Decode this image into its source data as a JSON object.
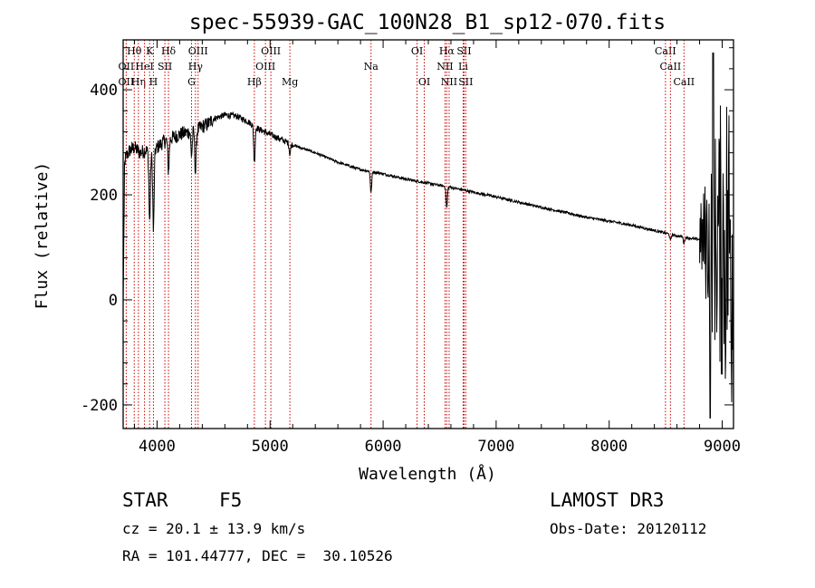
{
  "chart_data": {
    "type": "line",
    "title": "spec-55939-GAC_100N28_B1_sp12-070.fits",
    "xlabel": "Wavelength (Å)",
    "ylabel": "Flux (relative)",
    "xlim": [
      3700,
      9100
    ],
    "ylim": [
      -245,
      495
    ],
    "xticks": [
      4000,
      5000,
      6000,
      7000,
      8000,
      9000
    ],
    "yticks": [
      -200,
      0,
      200,
      400
    ],
    "continuum": {
      "x": [
        3700,
        3720,
        3760,
        3800,
        3850,
        3900,
        3950,
        4000,
        4050,
        4100,
        4150,
        4200,
        4250,
        4300,
        4350,
        4400,
        4450,
        4500,
        4600,
        4700,
        4800,
        4900,
        5000,
        5100,
        5200,
        5400,
        5600,
        5800,
        6000,
        6200,
        6400,
        6600,
        6800,
        7000,
        7200,
        7400,
        7600,
        7800,
        8000,
        8200,
        8400,
        8600,
        8700,
        8750,
        8800
      ],
      "y": [
        230,
        270,
        285,
        290,
        280,
        285,
        275,
        290,
        300,
        305,
        310,
        315,
        318,
        320,
        322,
        330,
        335,
        345,
        352,
        350,
        340,
        325,
        315,
        305,
        295,
        280,
        262,
        248,
        240,
        230,
        222,
        214,
        205,
        196,
        186,
        176,
        167,
        157,
        150,
        142,
        132,
        122,
        118,
        116,
        115
      ]
    },
    "absorption_lines": [
      {
        "name": "H",
        "x": 3968,
        "depth": 150
      },
      {
        "name": "K",
        "x": 3934,
        "depth": 130
      },
      {
        "name": "Hδ",
        "x": 4101,
        "depth": 60
      },
      {
        "name": "G",
        "x": 4305,
        "depth": 45
      },
      {
        "name": "Hγ",
        "x": 4340,
        "depth": 80
      },
      {
        "name": "Hβ",
        "x": 4861,
        "depth": 70
      },
      {
        "name": "Mg",
        "x": 5175,
        "depth": 20
      },
      {
        "name": "Na",
        "x": 5893,
        "depth": 40
      },
      {
        "name": "Hα",
        "x": 6563,
        "depth": 40
      },
      {
        "name": "CaII",
        "x": 8542,
        "depth": 12
      },
      {
        "name": "CaII",
        "x": 8662,
        "depth": 12
      }
    ],
    "red_end_noise": {
      "x_start": 8800,
      "x_end": 9100,
      "ymin": -225,
      "ymax": 470
    }
  },
  "line_markers": [
    {
      "label": "Hθ",
      "x": 3798,
      "row": 1
    },
    {
      "label": "OII",
      "x": 3727,
      "row": 2
    },
    {
      "label": "OII",
      "x": 3727,
      "row": 3
    },
    {
      "label": "Hη",
      "x": 3835,
      "row": 3
    },
    {
      "label": "K",
      "x": 3934,
      "row": 1
    },
    {
      "label": "HeI",
      "x": 3889,
      "row": 2
    },
    {
      "label": "H",
      "x": 3968,
      "row": 3
    },
    {
      "label": "Hδ",
      "x": 4101,
      "row": 1
    },
    {
      "label": "SII",
      "x": 4069,
      "row": 2
    },
    {
      "label": "OIII",
      "x": 4363,
      "row": 1
    },
    {
      "label": "Hγ",
      "x": 4340,
      "row": 2
    },
    {
      "label": "G",
      "x": 4305,
      "row": 3
    },
    {
      "label": "OIII",
      "x": 5007,
      "row": 1
    },
    {
      "label": "OIII",
      "x": 4959,
      "row": 2
    },
    {
      "label": "Hβ",
      "x": 4861,
      "row": 3
    },
    {
      "label": "Mg",
      "x": 5175,
      "row": 3
    },
    {
      "label": "Na",
      "x": 5893,
      "row": 2
    },
    {
      "label": "OI",
      "x": 6300,
      "row": 1
    },
    {
      "label": "OI",
      "x": 6364,
      "row": 3
    },
    {
      "label": "Hα",
      "x": 6563,
      "row": 1
    },
    {
      "label": "SII",
      "x": 6716,
      "row": 1
    },
    {
      "label": "NII",
      "x": 6548,
      "row": 2
    },
    {
      "label": "Li",
      "x": 6708,
      "row": 2
    },
    {
      "label": "NII",
      "x": 6584,
      "row": 3
    },
    {
      "label": "SII",
      "x": 6731,
      "row": 3
    },
    {
      "label": "CaII",
      "x": 8498,
      "row": 1
    },
    {
      "label": "CaII",
      "x": 8542,
      "row": 2
    },
    {
      "label": "CaII",
      "x": 8662,
      "row": 3
    }
  ],
  "info": {
    "object_class": "STAR",
    "subclass": "F5",
    "survey": "LAMOST DR3",
    "cz": "cz = 20.1 ± 13.9 km/s",
    "obs_date": "Obs-Date: 20120112",
    "coords": "RA = 101.44777, DEC =  30.10526"
  },
  "colors": {
    "spectrum": "#000000",
    "marker": "#cc0000",
    "axis": "#000000"
  }
}
